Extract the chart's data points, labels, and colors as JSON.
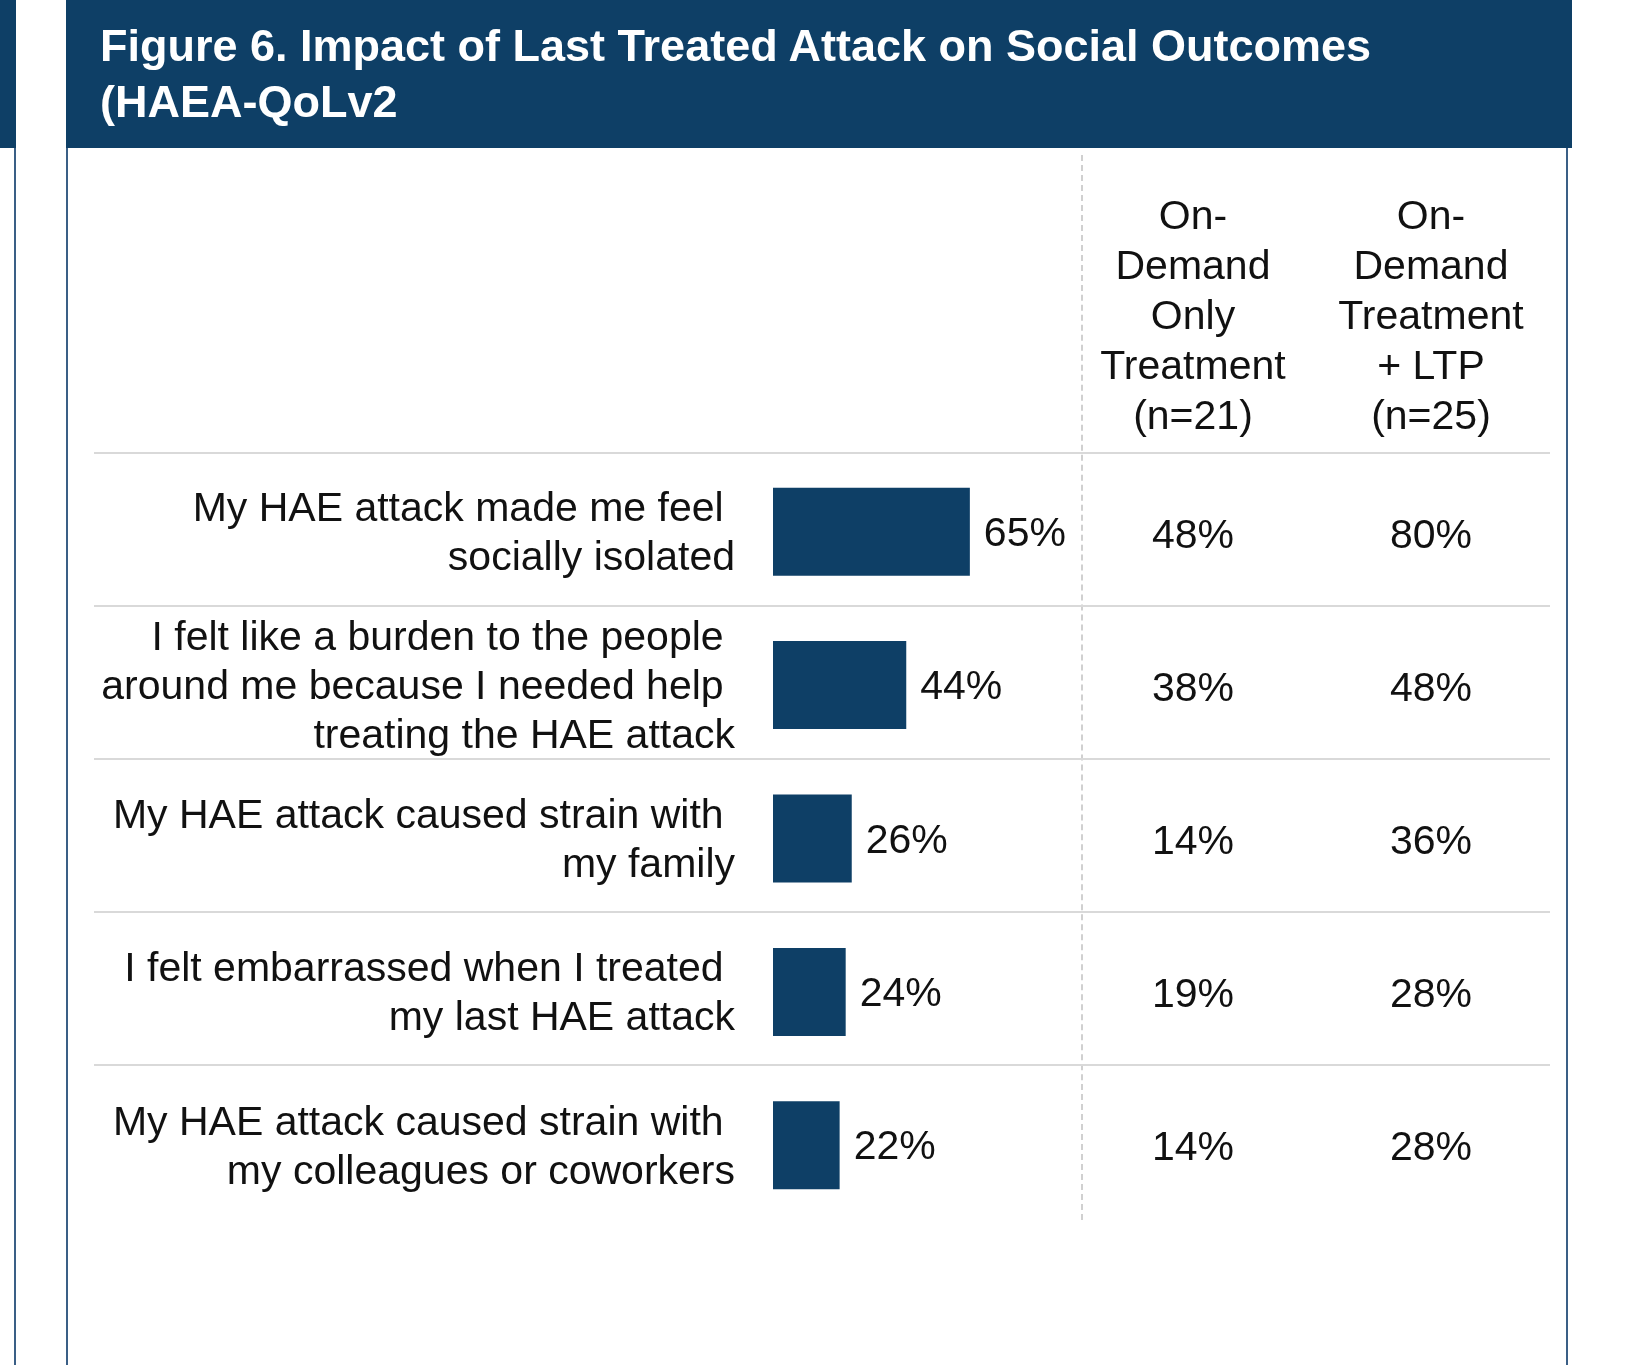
{
  "chart_data": {
    "type": "bar",
    "orientation": "horizontal",
    "title": "Figure 6. Impact of Last Treated Attack on Social Outcomes (HAEA-QoLv2",
    "categories": [
      "My HAE attack made me feel socially isolated",
      "I felt like a burden to the people around me because I needed help treating the HAE attack",
      "My HAE attack caused strain with my family",
      "I felt embarrassed when I treated my last HAE attack",
      "My HAE attack caused strain with my colleagues or coworkers"
    ],
    "values": [
      65,
      44,
      26,
      24,
      22
    ],
    "value_labels": [
      "65%",
      "44%",
      "26%",
      "24%",
      "22%"
    ],
    "color": "#0e3f66",
    "annotations": [
      "On-Demand Only Treatment (n=21)",
      "On-Demand Treatment + LTP (n=25)",
      "48%",
      "80%",
      "38%",
      "48%",
      "14%",
      "36%",
      "19%",
      "28%",
      "14%",
      "28%"
    ]
  }
}
